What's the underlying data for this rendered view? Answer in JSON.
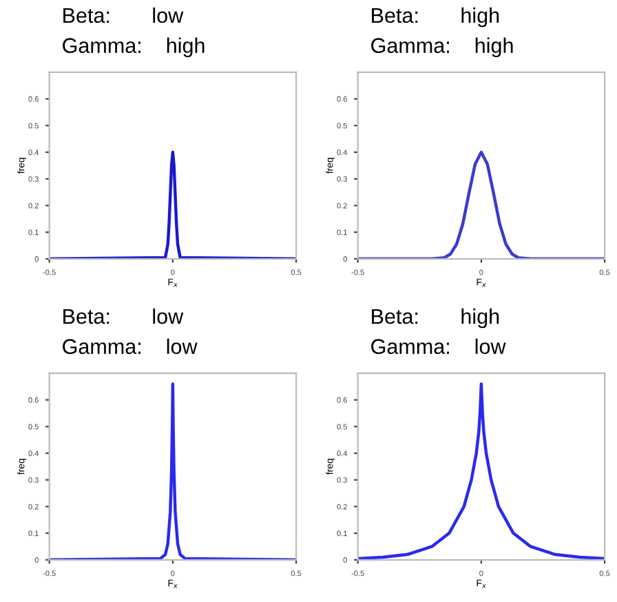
{
  "chart_data": [
    {
      "type": "line",
      "title": "Beta:       low",
      "subtitle": "Gamma:    high",
      "xlabel": "F$_{x}$",
      "ylabel": "freq",
      "xlim": [
        -0.5,
        0.5
      ],
      "xticks": [
        -0.5,
        0,
        0.5
      ],
      "ylim": [
        0,
        0.7
      ],
      "yticks": [
        0,
        0.1,
        0.2,
        0.3,
        0.4,
        0.5,
        0.6
      ],
      "grid": false,
      "legend": false,
      "series": [
        {
          "color": "#1a1acc",
          "x": [
            -0.5,
            -0.03,
            -0.02,
            -0.015,
            -0.01,
            -0.005,
            0,
            0.005,
            0.01,
            0.015,
            0.02,
            0.03,
            0.5
          ],
          "values": [
            0,
            0.005,
            0.055,
            0.13,
            0.24,
            0.35,
            0.4,
            0.35,
            0.24,
            0.13,
            0.055,
            0.005,
            0
          ]
        }
      ]
    },
    {
      "type": "line",
      "title": "Beta:       high",
      "subtitle": "Gamma:    high",
      "xlabel": "F$_{x}$",
      "ylabel": "freq",
      "xlim": [
        -0.5,
        0.5
      ],
      "xticks": [
        -0.5,
        0,
        0.5
      ],
      "ylim": [
        0,
        0.7
      ],
      "yticks": [
        0,
        0.1,
        0.2,
        0.3,
        0.4,
        0.5,
        0.6
      ],
      "grid": false,
      "legend": false,
      "series": [
        {
          "color": "#3a3ad0",
          "x": [
            -0.5,
            -0.2,
            -0.15,
            -0.125,
            -0.1,
            -0.075,
            -0.05,
            -0.025,
            0,
            0.025,
            0.05,
            0.075,
            0.1,
            0.125,
            0.15,
            0.2,
            0.5
          ],
          "values": [
            0,
            0,
            0.004,
            0.018,
            0.055,
            0.13,
            0.245,
            0.355,
            0.4,
            0.355,
            0.245,
            0.13,
            0.055,
            0.018,
            0.004,
            0,
            0
          ]
        }
      ]
    },
    {
      "type": "line",
      "title": "Beta:       low",
      "subtitle": "Gamma:    low",
      "xlabel": "F$_{x}$",
      "ylabel": "freq",
      "xlim": [
        -0.5,
        0.5
      ],
      "xticks": [
        -0.5,
        0,
        0.5
      ],
      "ylim": [
        0,
        0.7
      ],
      "yticks": [
        0,
        0.1,
        0.2,
        0.3,
        0.4,
        0.5,
        0.6
      ],
      "grid": false,
      "legend": false,
      "series": [
        {
          "color": "#2a2aee",
          "x": [
            -0.5,
            -0.05,
            -0.03,
            -0.02,
            -0.01,
            -0.005,
            -0.002,
            0,
            0.002,
            0.005,
            0.01,
            0.02,
            0.03,
            0.05,
            0.5
          ],
          "values": [
            0,
            0.005,
            0.02,
            0.06,
            0.18,
            0.33,
            0.5,
            0.66,
            0.5,
            0.33,
            0.18,
            0.06,
            0.02,
            0.005,
            0
          ]
        }
      ]
    },
    {
      "type": "line",
      "title": "Beta:       high",
      "subtitle": "Gamma:    low",
      "xlabel": "F$_{x}$",
      "ylabel": "freq",
      "xlim": [
        -0.5,
        0.5
      ],
      "xticks": [
        -0.5,
        0,
        0.5
      ],
      "ylim": [
        0,
        0.7
      ],
      "yticks": [
        0,
        0.1,
        0.2,
        0.3,
        0.4,
        0.5,
        0.6
      ],
      "grid": false,
      "legend": false,
      "series": [
        {
          "color": "#2a2aee",
          "x": [
            -0.5,
            -0.4,
            -0.3,
            -0.2,
            -0.13,
            -0.07,
            -0.04,
            -0.02,
            -0.01,
            -0.005,
            0,
            0.005,
            0.01,
            0.02,
            0.04,
            0.07,
            0.13,
            0.2,
            0.3,
            0.4,
            0.5
          ],
          "values": [
            0.005,
            0.01,
            0.02,
            0.05,
            0.1,
            0.2,
            0.3,
            0.4,
            0.48,
            0.55,
            0.66,
            0.55,
            0.48,
            0.4,
            0.3,
            0.2,
            0.1,
            0.05,
            0.02,
            0.01,
            0.005
          ]
        }
      ]
    }
  ]
}
